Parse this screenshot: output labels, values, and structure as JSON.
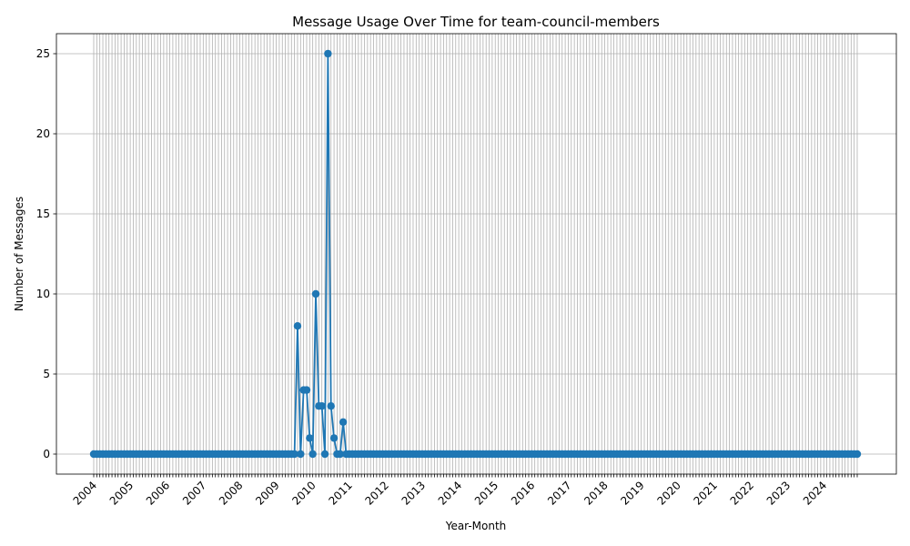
{
  "chart_data": {
    "type": "line",
    "title": "Message Usage Over Time for team-council-members",
    "xlabel": "Year-Month",
    "ylabel": "Number of Messages",
    "grid": true,
    "ylim": [
      -1.25,
      26.25
    ],
    "yticks": [
      0,
      5,
      10,
      15,
      20,
      25
    ],
    "x_start": "2004-01",
    "x_end": "2024-12",
    "x_tick_labels": [
      "2004",
      "2005",
      "2006",
      "2007",
      "2008",
      "2009",
      "2010",
      "2011",
      "2012",
      "2013",
      "2014",
      "2015",
      "2016",
      "2017",
      "2018",
      "2019",
      "2020",
      "2021",
      "2022",
      "2023",
      "2024"
    ],
    "series": [
      {
        "name": "",
        "color": "#1f77b4",
        "marker": "circle",
        "nonzero_points": [
          {
            "x": "2009-08",
            "y": 8
          },
          {
            "x": "2009-10",
            "y": 4
          },
          {
            "x": "2009-11",
            "y": 4
          },
          {
            "x": "2009-12",
            "y": 1
          },
          {
            "x": "2010-02",
            "y": 10
          },
          {
            "x": "2010-03",
            "y": 3
          },
          {
            "x": "2010-04",
            "y": 3
          },
          {
            "x": "2010-06",
            "y": 25
          },
          {
            "x": "2010-07",
            "y": 3
          },
          {
            "x": "2010-08",
            "y": 1
          },
          {
            "x": "2010-11",
            "y": 2
          }
        ],
        "other_months_value": 0
      }
    ]
  }
}
